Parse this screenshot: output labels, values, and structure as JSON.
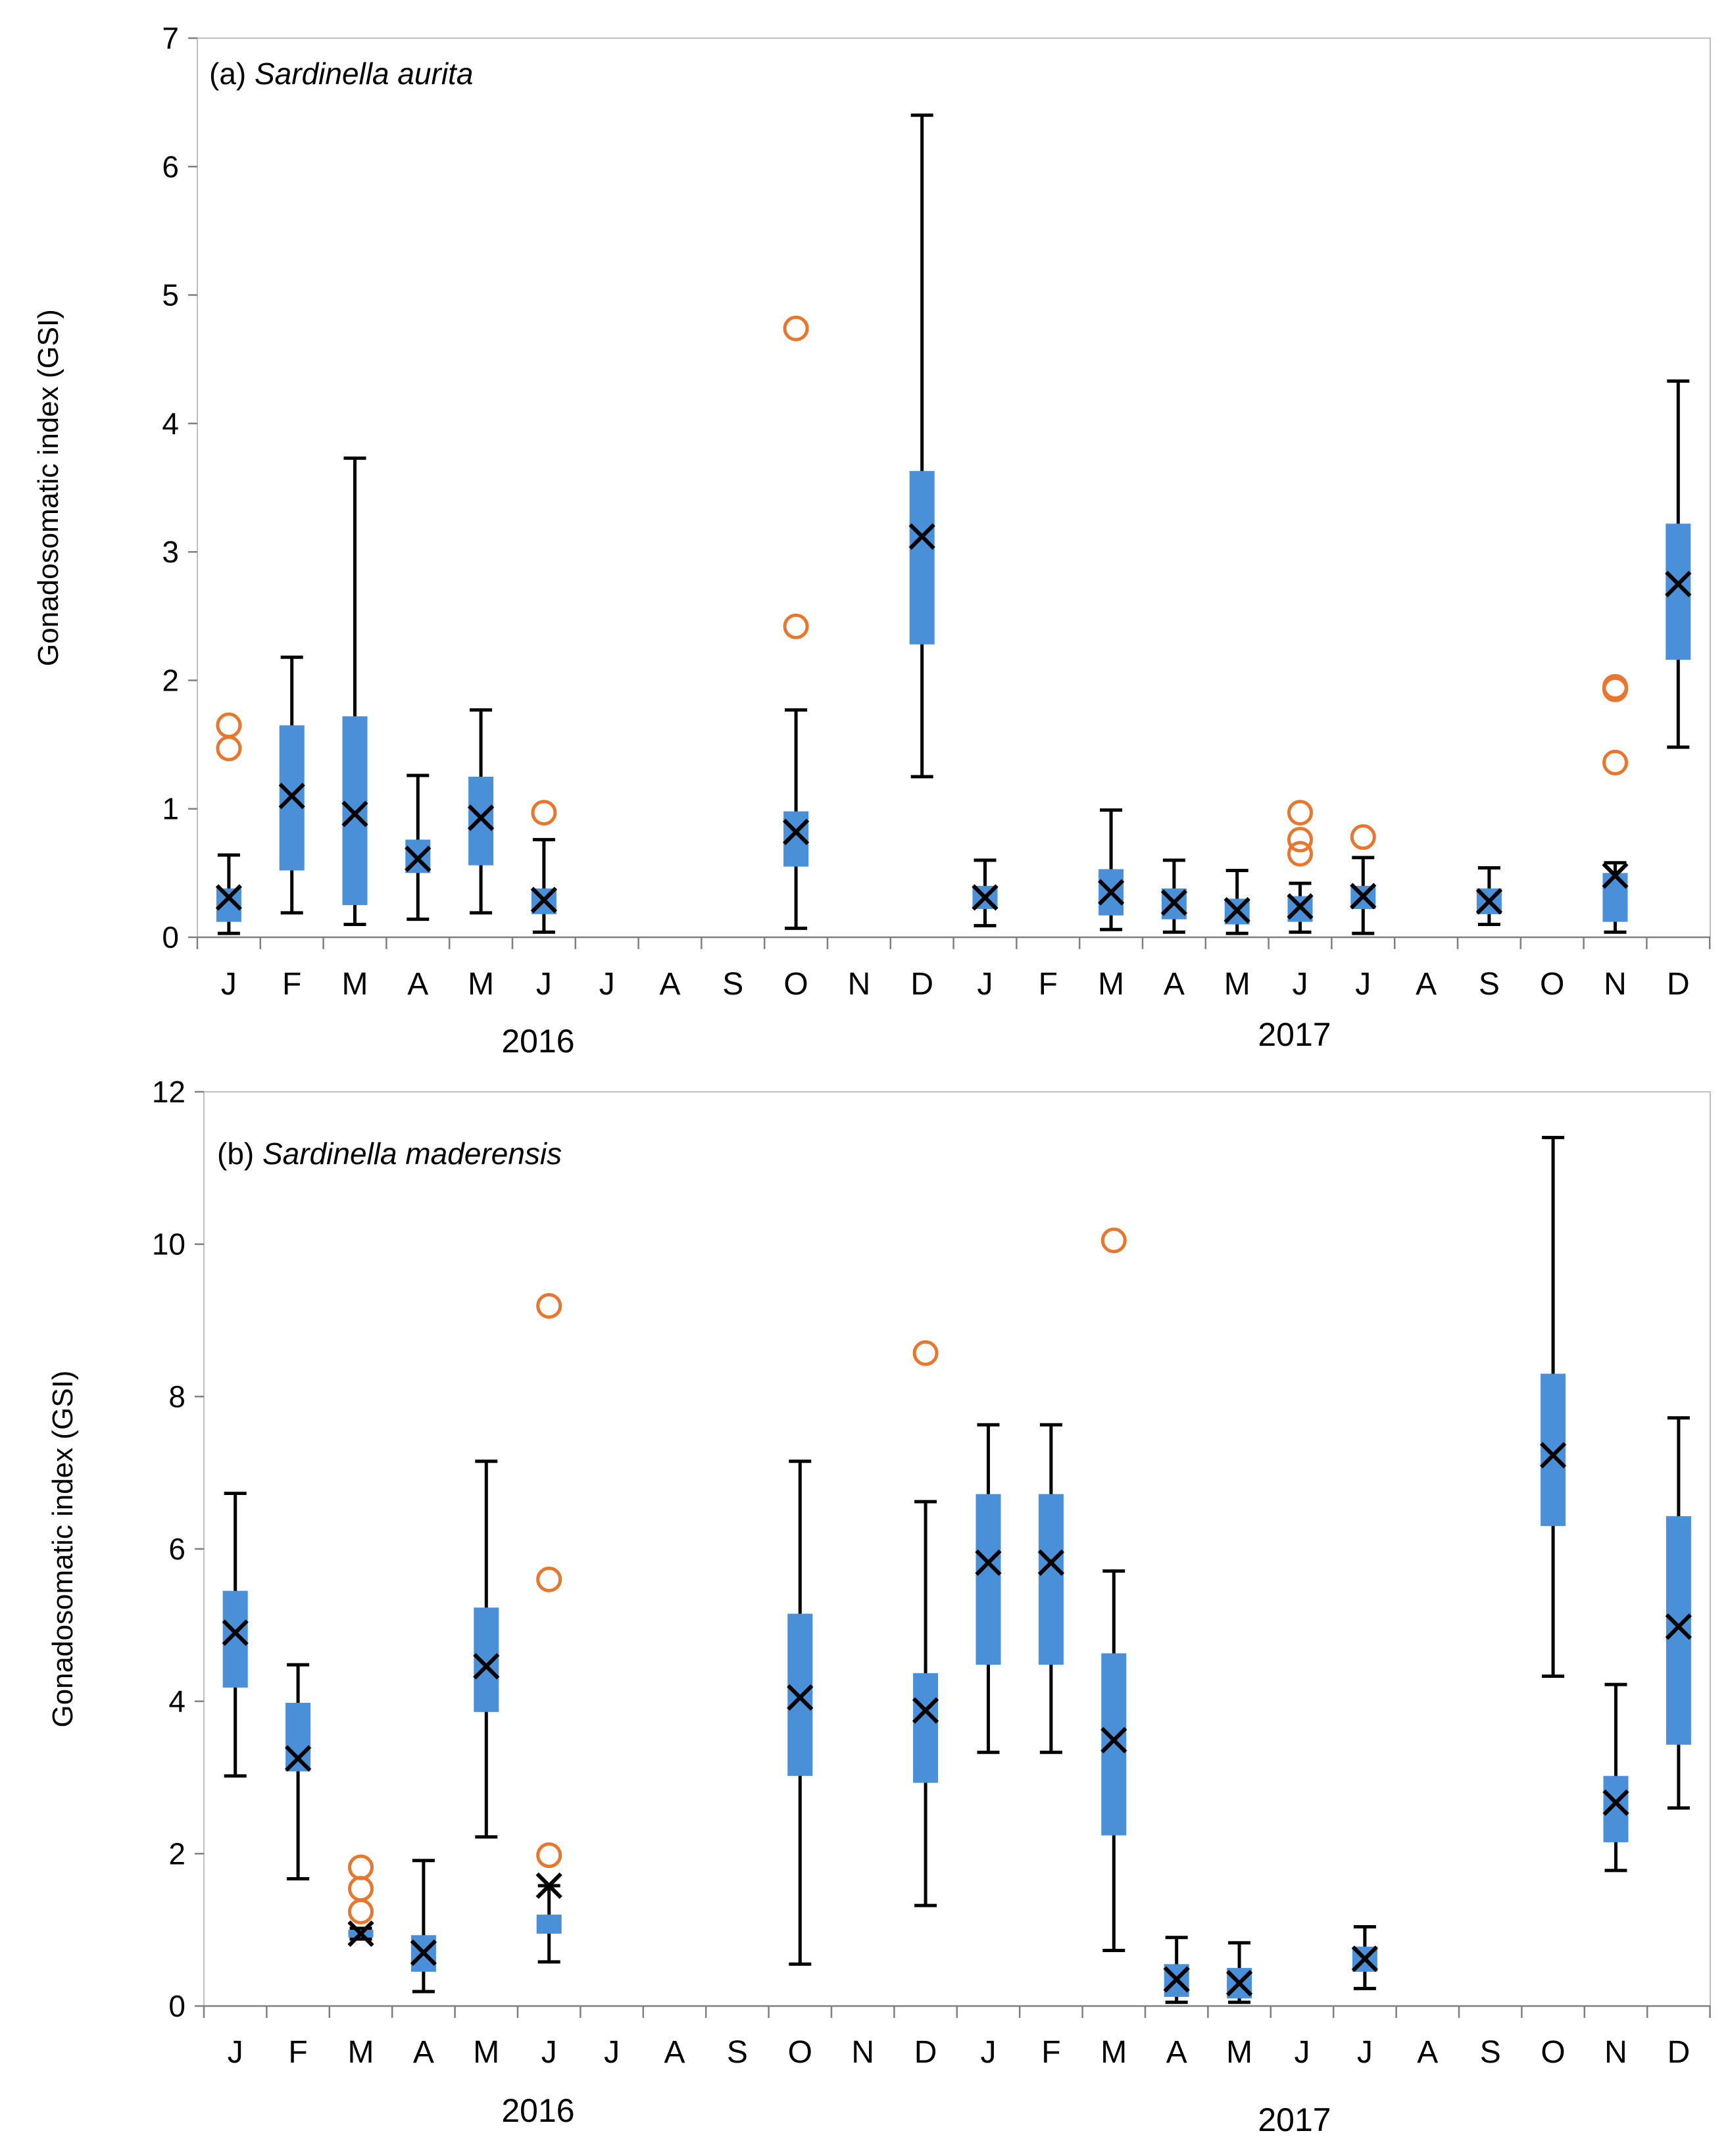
{
  "chart_data": [
    {
      "type": "box",
      "panel": "(a)",
      "title_prefix": "(a) ",
      "title_species": "Sardinella aurita",
      "ylabel": "Gonadosomatic index (GSI)",
      "ylim": [
        0,
        7
      ],
      "yticks": [
        "0",
        "1",
        "2",
        "3",
        "4",
        "5",
        "6",
        "7"
      ],
      "months": [
        "J",
        "F",
        "M",
        "A",
        "M",
        "J",
        "J",
        "A",
        "S",
        "O",
        "N",
        "D",
        "J",
        "F",
        "M",
        "A",
        "M",
        "J",
        "J",
        "A",
        "S",
        "O",
        "N",
        "D"
      ],
      "years": [
        "2016",
        "2017"
      ],
      "colors": {
        "box": "#4A90D9",
        "whisker": "#000000",
        "mean": "#000000",
        "outlier": "#E8762C"
      },
      "boxes": [
        {
          "i": 0,
          "min": 0.03,
          "q1": 0.12,
          "q3": 0.38,
          "max": 0.64,
          "mean": 0.31,
          "outliers": [
            1.47,
            1.65
          ]
        },
        {
          "i": 1,
          "min": 0.19,
          "q1": 0.52,
          "q3": 1.65,
          "max": 2.18,
          "mean": 1.1,
          "outliers": []
        },
        {
          "i": 2,
          "min": 0.1,
          "q1": 0.25,
          "q3": 1.72,
          "max": 3.73,
          "mean": 0.96,
          "outliers": []
        },
        {
          "i": 3,
          "min": 0.14,
          "q1": 0.5,
          "q3": 0.76,
          "max": 1.26,
          "mean": 0.61,
          "outliers": []
        },
        {
          "i": 4,
          "min": 0.19,
          "q1": 0.56,
          "q3": 1.25,
          "max": 1.77,
          "mean": 0.93,
          "outliers": []
        },
        {
          "i": 5,
          "min": 0.04,
          "q1": 0.18,
          "q3": 0.38,
          "max": 0.76,
          "mean": 0.29,
          "outliers": [
            0.97
          ]
        },
        {
          "i": 9,
          "min": 0.07,
          "q1": 0.55,
          "q3": 0.98,
          "max": 1.77,
          "mean": 0.82,
          "outliers": [
            2.42,
            4.74
          ]
        },
        {
          "i": 11,
          "min": 1.25,
          "q1": 2.28,
          "q3": 3.63,
          "max": 6.4,
          "mean": 3.12,
          "outliers": []
        },
        {
          "i": 12,
          "min": 0.09,
          "q1": 0.22,
          "q3": 0.4,
          "max": 0.6,
          "mean": 0.31,
          "outliers": []
        },
        {
          "i": 14,
          "min": 0.06,
          "q1": 0.17,
          "q3": 0.53,
          "max": 0.99,
          "mean": 0.35,
          "outliers": []
        },
        {
          "i": 15,
          "min": 0.04,
          "q1": 0.14,
          "q3": 0.38,
          "max": 0.6,
          "mean": 0.27,
          "outliers": []
        },
        {
          "i": 16,
          "min": 0.03,
          "q1": 0.1,
          "q3": 0.3,
          "max": 0.52,
          "mean": 0.21,
          "outliers": []
        },
        {
          "i": 17,
          "min": 0.04,
          "q1": 0.12,
          "q3": 0.32,
          "max": 0.42,
          "mean": 0.24,
          "outliers": [
            0.65,
            0.76,
            0.97
          ]
        },
        {
          "i": 18,
          "min": 0.03,
          "q1": 0.22,
          "q3": 0.4,
          "max": 0.62,
          "mean": 0.32,
          "outliers": [
            0.78
          ]
        },
        {
          "i": 20,
          "min": 0.1,
          "q1": 0.18,
          "q3": 0.38,
          "max": 0.54,
          "mean": 0.28,
          "outliers": []
        },
        {
          "i": 22,
          "min": 0.04,
          "q1": 0.12,
          "q3": 0.5,
          "max": 0.58,
          "mean": 0.48,
          "outliers": [
            1.36,
            1.93,
            1.95
          ]
        },
        {
          "i": 23,
          "min": 1.48,
          "q1": 2.16,
          "q3": 3.22,
          "max": 4.33,
          "mean": 2.75,
          "outliers": []
        }
      ]
    },
    {
      "type": "box",
      "panel": "(b)",
      "title_prefix": "(b) ",
      "title_species": "Sardinella maderensis",
      "ylabel": "Gonadosomatic index (GSI)",
      "ylim": [
        0,
        12
      ],
      "yticks": [
        "0",
        "2",
        "4",
        "6",
        "8",
        "10",
        "12"
      ],
      "months": [
        "J",
        "F",
        "M",
        "A",
        "M",
        "J",
        "J",
        "A",
        "S",
        "O",
        "N",
        "D",
        "J",
        "F",
        "M",
        "A",
        "M",
        "J",
        "J",
        "A",
        "S",
        "O",
        "N",
        "D"
      ],
      "years": [
        "2016",
        "2017"
      ],
      "colors": {
        "box": "#4A90D9",
        "whisker": "#000000",
        "mean": "#000000",
        "outlier": "#E8762C"
      },
      "boxes": [
        {
          "i": 0,
          "min": 3.02,
          "q1": 4.18,
          "q3": 5.45,
          "max": 6.73,
          "mean": 4.9,
          "outliers": []
        },
        {
          "i": 1,
          "min": 1.67,
          "q1": 3.08,
          "q3": 3.98,
          "max": 4.48,
          "mean": 3.25,
          "outliers": []
        },
        {
          "i": 2,
          "min": 0.88,
          "q1": 0.9,
          "q3": 1.0,
          "max": 1.02,
          "mean": 0.95,
          "outliers": [
            1.24,
            1.54,
            1.82
          ]
        },
        {
          "i": 3,
          "min": 0.19,
          "q1": 0.45,
          "q3": 0.93,
          "max": 1.91,
          "mean": 0.7,
          "outliers": []
        },
        {
          "i": 4,
          "min": 2.22,
          "q1": 3.86,
          "q3": 5.23,
          "max": 7.15,
          "mean": 4.46,
          "outliers": []
        },
        {
          "i": 5,
          "min": 0.58,
          "q1": 0.95,
          "q3": 1.2,
          "max": 1.58,
          "mean": 1.58,
          "outliers": [
            1.98,
            5.6,
            9.19
          ]
        },
        {
          "i": 9,
          "min": 0.55,
          "q1": 3.02,
          "q3": 5.15,
          "max": 7.15,
          "mean": 4.05,
          "outliers": []
        },
        {
          "i": 11,
          "min": 1.32,
          "q1": 2.93,
          "q3": 4.37,
          "max": 6.62,
          "mean": 3.88,
          "outliers": [
            8.57
          ]
        },
        {
          "i": 12,
          "min": 3.33,
          "q1": 4.48,
          "q3": 6.72,
          "max": 7.63,
          "mean": 5.82,
          "outliers": []
        },
        {
          "i": 13,
          "min": 3.33,
          "q1": 4.48,
          "q3": 6.72,
          "max": 7.63,
          "mean": 5.82,
          "outliers": []
        },
        {
          "i": 14,
          "min": 0.73,
          "q1": 2.24,
          "q3": 4.63,
          "max": 5.71,
          "mean": 3.49,
          "outliers": [
            10.05
          ]
        },
        {
          "i": 15,
          "min": 0.05,
          "q1": 0.12,
          "q3": 0.55,
          "max": 0.9,
          "mean": 0.35,
          "outliers": []
        },
        {
          "i": 16,
          "min": 0.05,
          "q1": 0.1,
          "q3": 0.5,
          "max": 0.83,
          "mean": 0.3,
          "outliers": []
        },
        {
          "i": 18,
          "min": 0.23,
          "q1": 0.45,
          "q3": 0.78,
          "max": 1.04,
          "mean": 0.62,
          "outliers": []
        },
        {
          "i": 21,
          "min": 4.33,
          "q1": 6.3,
          "q3": 8.3,
          "max": 11.4,
          "mean": 7.23,
          "outliers": []
        },
        {
          "i": 22,
          "min": 1.78,
          "q1": 2.15,
          "q3": 3.02,
          "max": 4.22,
          "mean": 2.67,
          "outliers": []
        },
        {
          "i": 23,
          "min": 2.6,
          "q1": 3.43,
          "q3": 6.43,
          "max": 7.72,
          "mean": 4.98,
          "outliers": []
        }
      ]
    }
  ]
}
